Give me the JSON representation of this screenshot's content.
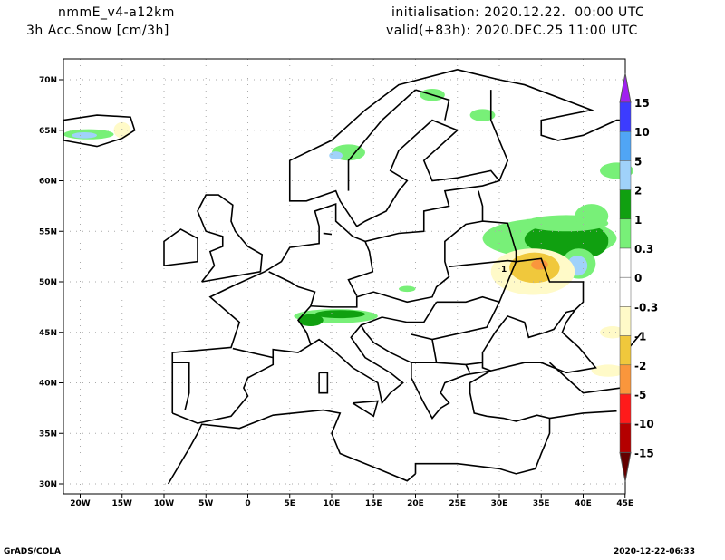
{
  "header": {
    "model": "nmmE_v4-a12km",
    "variable": "3h Acc.Snow [cm/3h]",
    "init": "initialisation: 2020.12.22.  00:00 UTC",
    "valid": "valid(+83h): 2020.DEC.25 11:00 UTC"
  },
  "footer": {
    "left": "GrADS/COLA",
    "right": "2020-12-22-06:33"
  },
  "map": {
    "lon_labels": [
      "20W",
      "15W",
      "10W",
      "5W",
      "0",
      "5E",
      "10E",
      "15E",
      "20E",
      "25E",
      "30E",
      "35E",
      "40E",
      "45E"
    ],
    "lat_labels": [
      "70N",
      "65N",
      "60N",
      "55N",
      "50N",
      "45N",
      "40N",
      "35N",
      "30N"
    ],
    "contour_label": "1"
  },
  "colorbar": {
    "labels": [
      "15",
      "10",
      "5",
      "2",
      "1",
      "0.3",
      "0",
      "-0.3",
      "-1",
      "-2",
      "-5",
      "-10",
      "-15"
    ],
    "colors": [
      "#a020f0",
      "#3c3cff",
      "#50a5f5",
      "#a0d2fa",
      "#10a010",
      "#78f078",
      "#ffffff",
      "#ffffff",
      "#fffac8",
      "#f0c83c",
      "#fa963c",
      "#ff1a1a",
      "#b40000",
      "#640000"
    ]
  }
}
